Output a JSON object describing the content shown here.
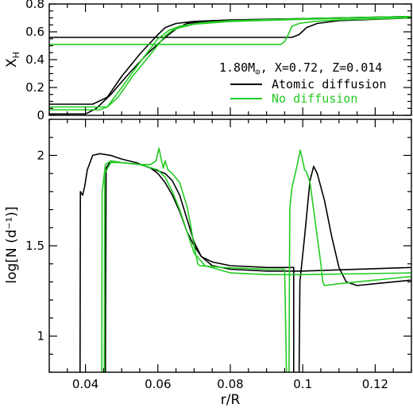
{
  "chart_data": [
    {
      "type": "line",
      "panel": "top",
      "ylabel": "X",
      "ylabel_sub": "H",
      "xlim": [
        0.03,
        0.13
      ],
      "ylim": [
        0,
        0.8
      ],
      "yticks": [
        0,
        0.2,
        0.4,
        0.6,
        0.8
      ],
      "yticklabels": [
        "0",
        "0.2",
        "0.4",
        "0.6",
        "0.8"
      ],
      "annotation": {
        "mass": "1.80M",
        "sun_symbol": "⊙",
        "params": ", X=0.72, Z=0.014"
      },
      "legend": [
        {
          "name": "Atomic diffusion",
          "color": "#000000"
        },
        {
          "name": "No diffusion",
          "color": "#22cc22"
        }
      ],
      "series": [
        {
          "name": "Atomic diffusion",
          "color": "#000000",
          "points": [
            [
              0.03,
              0.08
            ],
            [
              0.042,
              0.08
            ],
            [
              0.046,
              0.13
            ],
            [
              0.05,
              0.28
            ],
            [
              0.055,
              0.44
            ],
            [
              0.06,
              0.58
            ],
            [
              0.062,
              0.63
            ],
            [
              0.065,
              0.66
            ],
            [
              0.07,
              0.675
            ],
            [
              0.08,
              0.685
            ],
            [
              0.1,
              0.695
            ],
            [
              0.13,
              0.71
            ]
          ]
        },
        {
          "name": "Atomic diffusion",
          "color": "#000000",
          "points": [
            [
              0.03,
              0.01
            ],
            [
              0.04,
              0.01
            ],
            [
              0.043,
              0.05
            ],
            [
              0.047,
              0.15
            ],
            [
              0.052,
              0.3
            ],
            [
              0.057,
              0.44
            ],
            [
              0.062,
              0.56
            ],
            [
              0.065,
              0.62
            ],
            [
              0.068,
              0.66
            ],
            [
              0.075,
              0.68
            ],
            [
              0.09,
              0.69
            ],
            [
              0.13,
              0.71
            ]
          ]
        },
        {
          "name": "Atomic diffusion",
          "color": "#000000",
          "points": [
            [
              0.03,
              0.56
            ],
            [
              0.097,
              0.56
            ],
            [
              0.099,
              0.58
            ],
            [
              0.101,
              0.63
            ],
            [
              0.104,
              0.66
            ],
            [
              0.11,
              0.68
            ],
            [
              0.13,
              0.7
            ]
          ]
        },
        {
          "name": "No diffusion",
          "color": "#22cc22",
          "points": [
            [
              0.03,
              0.04
            ],
            [
              0.044,
              0.04
            ],
            [
              0.046,
              0.06
            ],
            [
              0.05,
              0.2
            ],
            [
              0.055,
              0.38
            ],
            [
              0.06,
              0.55
            ],
            [
              0.063,
              0.61
            ],
            [
              0.066,
              0.64
            ],
            [
              0.072,
              0.665
            ],
            [
              0.08,
              0.68
            ],
            [
              0.1,
              0.695
            ],
            [
              0.13,
              0.71
            ]
          ]
        },
        {
          "name": "No diffusion",
          "color": "#22cc22",
          "points": [
            [
              0.03,
              0.06
            ],
            [
              0.046,
              0.06
            ],
            [
              0.049,
              0.13
            ],
            [
              0.053,
              0.28
            ],
            [
              0.058,
              0.44
            ],
            [
              0.062,
              0.57
            ],
            [
              0.064,
              0.61
            ],
            [
              0.066,
              0.63
            ],
            [
              0.07,
              0.655
            ],
            [
              0.08,
              0.675
            ],
            [
              0.1,
              0.69
            ],
            [
              0.13,
              0.71
            ]
          ]
        },
        {
          "name": "No diffusion",
          "color": "#22cc22",
          "points": [
            [
              0.03,
              0.51
            ],
            [
              0.094,
              0.51
            ],
            [
              0.095,
              0.53
            ],
            [
              0.096,
              0.58
            ],
            [
              0.097,
              0.64
            ],
            [
              0.099,
              0.66
            ],
            [
              0.103,
              0.675
            ],
            [
              0.11,
              0.685
            ],
            [
              0.13,
              0.7
            ]
          ]
        }
      ]
    },
    {
      "type": "line",
      "panel": "bottom",
      "xlabel": "r/R",
      "ylabel": "log[N (d⁻¹)]",
      "xlim": [
        0.03,
        0.13
      ],
      "ylim": [
        0.8,
        2.2
      ],
      "xticks": [
        0.04,
        0.06,
        0.08,
        0.1,
        0.12
      ],
      "xticklabels": [
        "0.04",
        "0.06",
        "0.08",
        "0.1",
        "0.12"
      ],
      "yticks": [
        1,
        1.5,
        2
      ],
      "yticklabels": [
        "1",
        "1.5",
        "2"
      ],
      "series": [
        {
          "name": "Atomic diffusion",
          "color": "#000000",
          "points": [
            [
              0.0385,
              0.8
            ],
            [
              0.0386,
              1.8
            ],
            [
              0.0392,
              1.78
            ],
            [
              0.0398,
              1.83
            ],
            [
              0.0405,
              1.92
            ],
            [
              0.042,
              2.0
            ],
            [
              0.044,
              2.01
            ],
            [
              0.047,
              2.0
            ],
            [
              0.05,
              1.98
            ],
            [
              0.054,
              1.96
            ],
            [
              0.058,
              1.93
            ],
            [
              0.06,
              1.9
            ],
            [
              0.062,
              1.85
            ],
            [
              0.064,
              1.78
            ],
            [
              0.066,
              1.69
            ],
            [
              0.068,
              1.58
            ],
            [
              0.07,
              1.5
            ],
            [
              0.072,
              1.44
            ],
            [
              0.075,
              1.41
            ],
            [
              0.08,
              1.39
            ],
            [
              0.09,
              1.38
            ],
            [
              0.0975,
              1.38
            ],
            [
              0.0975,
              0.8
            ]
          ]
        },
        {
          "name": "Atomic diffusion",
          "color": "#000000",
          "points": [
            [
              0.0455,
              0.8
            ],
            [
              0.0457,
              1.93
            ],
            [
              0.047,
              1.97
            ],
            [
              0.05,
              1.96
            ],
            [
              0.055,
              1.95
            ],
            [
              0.058,
              1.93
            ],
            [
              0.062,
              1.9
            ],
            [
              0.064,
              1.86
            ],
            [
              0.066,
              1.78
            ],
            [
              0.068,
              1.65
            ],
            [
              0.07,
              1.52
            ],
            [
              0.072,
              1.44
            ],
            [
              0.075,
              1.39
            ],
            [
              0.08,
              1.37
            ],
            [
              0.09,
              1.36
            ],
            [
              0.1,
              1.36
            ],
            [
              0.13,
              1.38
            ]
          ]
        },
        {
          "name": "Atomic diffusion",
          "color": "#000000",
          "points": [
            [
              0.099,
              0.8
            ],
            [
              0.0992,
              1.3
            ],
            [
              0.1005,
              1.55
            ],
            [
              0.102,
              1.86
            ],
            [
              0.103,
              1.94
            ],
            [
              0.104,
              1.9
            ],
            [
              0.106,
              1.75
            ],
            [
              0.108,
              1.55
            ],
            [
              0.11,
              1.38
            ],
            [
              0.112,
              1.3
            ],
            [
              0.115,
              1.28
            ],
            [
              0.12,
              1.29
            ],
            [
              0.13,
              1.31
            ]
          ]
        },
        {
          "name": "No diffusion",
          "color": "#22cc22",
          "points": [
            [
              0.0445,
              0.8
            ],
            [
              0.0446,
              1.8
            ],
            [
              0.0455,
              1.95
            ],
            [
              0.047,
              1.97
            ],
            [
              0.05,
              1.96
            ],
            [
              0.055,
              1.95
            ],
            [
              0.058,
              1.95
            ],
            [
              0.0595,
              1.97
            ],
            [
              0.0603,
              2.04
            ],
            [
              0.061,
              1.97
            ],
            [
              0.0615,
              1.93
            ],
            [
              0.062,
              1.97
            ],
            [
              0.0628,
              1.92
            ],
            [
              0.064,
              1.9
            ],
            [
              0.066,
              1.85
            ],
            [
              0.068,
              1.72
            ],
            [
              0.069,
              1.62
            ],
            [
              0.07,
              1.5
            ],
            [
              0.071,
              1.4
            ],
            [
              0.0715,
              1.39
            ],
            [
              0.078,
              1.38
            ],
            [
              0.09,
              1.37
            ],
            [
              0.095,
              1.37
            ],
            [
              0.0955,
              0.8
            ]
          ]
        },
        {
          "name": "No diffusion",
          "color": "#22cc22",
          "points": [
            [
              0.0452,
              0.8
            ],
            [
              0.0453,
              1.9
            ],
            [
              0.047,
              1.96
            ],
            [
              0.05,
              1.96
            ],
            [
              0.055,
              1.95
            ],
            [
              0.06,
              1.92
            ],
            [
              0.062,
              1.88
            ],
            [
              0.064,
              1.8
            ],
            [
              0.066,
              1.7
            ],
            [
              0.068,
              1.58
            ],
            [
              0.07,
              1.46
            ],
            [
              0.073,
              1.39
            ],
            [
              0.08,
              1.35
            ],
            [
              0.09,
              1.34
            ],
            [
              0.1,
              1.34
            ],
            [
              0.13,
              1.35
            ]
          ]
        },
        {
          "name": "No diffusion",
          "color": "#22cc22",
          "points": [
            [
              0.0962,
              0.8
            ],
            [
              0.0964,
              1.7
            ],
            [
              0.097,
              1.82
            ],
            [
              0.0985,
              1.95
            ],
            [
              0.0993,
              2.03
            ],
            [
              0.1,
              1.97
            ],
            [
              0.1005,
              1.92
            ],
            [
              0.101,
              1.91
            ],
            [
              0.102,
              1.85
            ],
            [
              0.103,
              1.7
            ],
            [
              0.104,
              1.55
            ],
            [
              0.105,
              1.4
            ],
            [
              0.1055,
              1.3
            ],
            [
              0.106,
              1.28
            ],
            [
              0.11,
              1.29
            ],
            [
              0.12,
              1.31
            ],
            [
              0.13,
              1.33
            ]
          ]
        }
      ]
    }
  ]
}
